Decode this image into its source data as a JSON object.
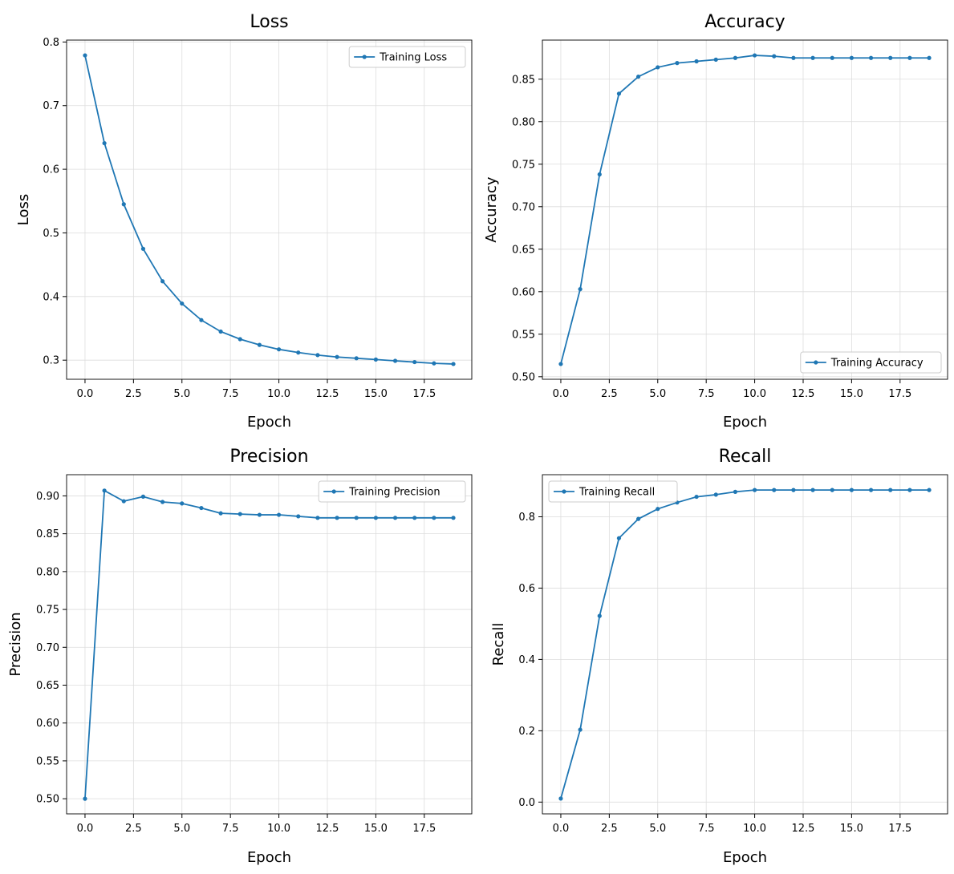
{
  "style": {
    "line_color": "#1f77b4",
    "grid_color": "#dddddd",
    "frame_color": "#000000"
  },
  "chart_data": [
    {
      "type": "line",
      "title": "Loss",
      "xlabel": "Epoch",
      "ylabel": "Loss",
      "x": [
        0,
        1,
        2,
        3,
        4,
        5,
        6,
        7,
        8,
        9,
        10,
        11,
        12,
        13,
        14,
        15,
        16,
        17,
        18,
        19
      ],
      "series": [
        {
          "name": "Training Loss",
          "values": [
            0.779,
            0.641,
            0.545,
            0.475,
            0.424,
            0.389,
            0.363,
            0.345,
            0.333,
            0.324,
            0.317,
            0.312,
            0.308,
            0.305,
            0.303,
            0.301,
            0.299,
            0.297,
            0.295,
            0.294
          ]
        }
      ],
      "xlim": [
        -0.95,
        19.95
      ],
      "ylim": [
        0.27,
        0.803
      ],
      "xticks": [
        0,
        2.5,
        5,
        7.5,
        10,
        12.5,
        15,
        17.5
      ],
      "xtick_labels": [
        "0.0",
        "2.5",
        "5.0",
        "7.5",
        "10.0",
        "12.5",
        "15.0",
        "17.5"
      ],
      "yticks": [
        0.3,
        0.4,
        0.5,
        0.6,
        0.7,
        0.8
      ],
      "ytick_labels": [
        "0.3",
        "0.4",
        "0.5",
        "0.6",
        "0.7",
        "0.8"
      ],
      "grid": true,
      "legend": "upper right"
    },
    {
      "type": "line",
      "title": "Accuracy",
      "xlabel": "Epoch",
      "ylabel": "Accuracy",
      "x": [
        0,
        1,
        2,
        3,
        4,
        5,
        6,
        7,
        8,
        9,
        10,
        11,
        12,
        13,
        14,
        15,
        16,
        17,
        18,
        19
      ],
      "series": [
        {
          "name": "Training Accuracy",
          "values": [
            0.515,
            0.603,
            0.738,
            0.833,
            0.853,
            0.864,
            0.869,
            0.871,
            0.873,
            0.875,
            0.878,
            0.877,
            0.875,
            0.875,
            0.875,
            0.875,
            0.875,
            0.875,
            0.875,
            0.875
          ]
        }
      ],
      "xlim": [
        -0.95,
        19.95
      ],
      "ylim": [
        0.497,
        0.896
      ],
      "xticks": [
        0,
        2.5,
        5,
        7.5,
        10,
        12.5,
        15,
        17.5
      ],
      "xtick_labels": [
        "0.0",
        "2.5",
        "5.0",
        "7.5",
        "10.0",
        "12.5",
        "15.0",
        "17.5"
      ],
      "yticks": [
        0.5,
        0.55,
        0.6,
        0.65,
        0.7,
        0.75,
        0.8,
        0.85
      ],
      "ytick_labels": [
        "0.50",
        "0.55",
        "0.60",
        "0.65",
        "0.70",
        "0.75",
        "0.80",
        "0.85"
      ],
      "grid": true,
      "legend": "lower right"
    },
    {
      "type": "line",
      "title": "Precision",
      "xlabel": "Epoch",
      "ylabel": "Precision",
      "x": [
        0,
        1,
        2,
        3,
        4,
        5,
        6,
        7,
        8,
        9,
        10,
        11,
        12,
        13,
        14,
        15,
        16,
        17,
        18,
        19
      ],
      "series": [
        {
          "name": "Training Precision",
          "values": [
            0.5,
            0.907,
            0.893,
            0.899,
            0.892,
            0.89,
            0.884,
            0.877,
            0.876,
            0.875,
            0.875,
            0.873,
            0.871,
            0.871,
            0.871,
            0.871,
            0.871,
            0.871,
            0.871,
            0.871
          ]
        }
      ],
      "xlim": [
        -0.95,
        19.95
      ],
      "ylim": [
        0.48,
        0.928
      ],
      "xticks": [
        0,
        2.5,
        5,
        7.5,
        10,
        12.5,
        15,
        17.5
      ],
      "xtick_labels": [
        "0.0",
        "2.5",
        "5.0",
        "7.5",
        "10.0",
        "12.5",
        "15.0",
        "17.5"
      ],
      "yticks": [
        0.5,
        0.55,
        0.6,
        0.65,
        0.7,
        0.75,
        0.8,
        0.85,
        0.9
      ],
      "ytick_labels": [
        "0.50",
        "0.55",
        "0.60",
        "0.65",
        "0.70",
        "0.75",
        "0.80",
        "0.85",
        "0.90"
      ],
      "grid": true,
      "legend": "upper right"
    },
    {
      "type": "line",
      "title": "Recall",
      "xlabel": "Epoch",
      "ylabel": "Recall",
      "x": [
        0,
        1,
        2,
        3,
        4,
        5,
        6,
        7,
        8,
        9,
        10,
        11,
        12,
        13,
        14,
        15,
        16,
        17,
        18,
        19
      ],
      "series": [
        {
          "name": "Training Recall",
          "values": [
            0.01,
            0.203,
            0.522,
            0.74,
            0.794,
            0.822,
            0.84,
            0.856,
            0.862,
            0.87,
            0.875,
            0.875,
            0.875,
            0.875,
            0.875,
            0.875,
            0.875,
            0.875,
            0.875,
            0.875
          ]
        }
      ],
      "xlim": [
        -0.95,
        19.95
      ],
      "ylim": [
        -0.033,
        0.918
      ],
      "xticks": [
        0,
        2.5,
        5,
        7.5,
        10,
        12.5,
        15,
        17.5
      ],
      "xtick_labels": [
        "0.0",
        "2.5",
        "5.0",
        "7.5",
        "10.0",
        "12.5",
        "15.0",
        "17.5"
      ],
      "yticks": [
        0.0,
        0.2,
        0.4,
        0.6,
        0.8
      ],
      "ytick_labels": [
        "0.0",
        "0.2",
        "0.4",
        "0.6",
        "0.8"
      ],
      "grid": true,
      "legend": "upper left"
    }
  ]
}
